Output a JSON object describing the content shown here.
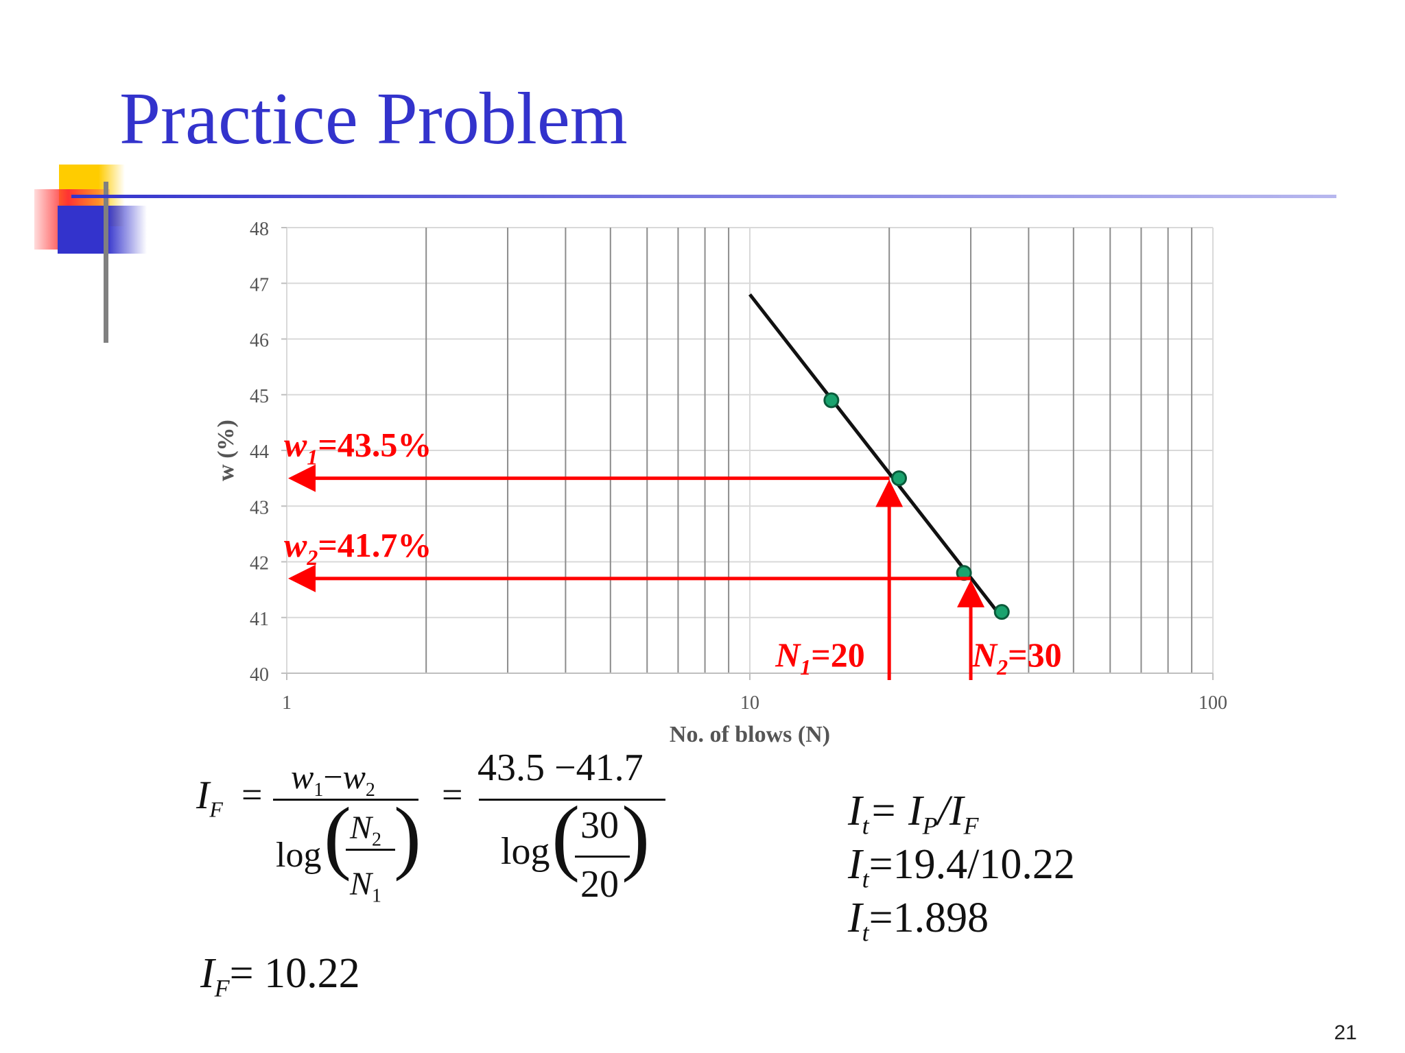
{
  "slide": {
    "title": "Practice Problem",
    "page_number": "21"
  },
  "chart_data": {
    "type": "scatter",
    "x_scale": "log",
    "xlabel": "No. of blows (N)",
    "ylabel": "w (%)",
    "xlim": [
      1,
      100
    ],
    "ylim": [
      40,
      48
    ],
    "x_ticks": [
      "1",
      "10",
      "100"
    ],
    "y_ticks": [
      "40",
      "41",
      "42",
      "43",
      "44",
      "45",
      "46",
      "47",
      "48"
    ],
    "grid": true,
    "points": [
      {
        "x": 15,
        "y": 44.9
      },
      {
        "x": 21,
        "y": 43.5
      },
      {
        "x": 29,
        "y": 41.8
      },
      {
        "x": 35,
        "y": 41.1
      }
    ],
    "trendline": {
      "from": {
        "x": 10,
        "y": 46.8
      },
      "to": {
        "x": 35,
        "y": 41.0
      }
    },
    "annotations": [
      {
        "label": "w1=43.5%",
        "text_main": "w",
        "text_sub": "1",
        "text_rest": "=43.5%",
        "y": 43.5,
        "from_x": 20
      },
      {
        "label": "w2=41.7%",
        "text_main": "w",
        "text_sub": "2",
        "text_rest": "=41.7%",
        "y": 41.7,
        "from_x": 30
      },
      {
        "label": "N1=20",
        "text_main": "N",
        "text_sub": "1",
        "text_rest": "=20",
        "x": 20,
        "to_y": 43.5
      },
      {
        "label": "N2=30",
        "text_main": "N",
        "text_sub": "2",
        "text_rest": "=30",
        "x": 30,
        "to_y": 41.7
      }
    ],
    "colors": {
      "points": "#1aa36e",
      "line": "#111111",
      "annotation": "#ff0000",
      "grid": "#d9d9d9",
      "minor_grid": "#8c8c8c"
    }
  },
  "equations": {
    "if_symbol": "I",
    "if_sub": "F",
    "eq_sign": "=",
    "num_w1": "w",
    "num_w1_sub": "1",
    "minus": "−",
    "num_w2": "w",
    "num_w2_sub": "2",
    "log": "log",
    "frac_n2": "N",
    "frac_n2_sub": "2",
    "frac_n1": "N",
    "frac_n1_sub": "1",
    "num_values": "43.5 −41.7",
    "frac_30": "30",
    "frac_20": "20",
    "result_if": "10.22",
    "it_line1_rest": "= I",
    "it_line1_p": "P",
    "it_line1_slash": "/I",
    "it_line1_f": "F",
    "it_line2_rest": "=19.4/10.22",
    "it_line3_rest": "=1.898",
    "it_symbol": "I",
    "it_sub": "t"
  },
  "decoration_colors": {
    "yellow": "#ffcc00",
    "red": "#ff3333",
    "blue": "#3333cc",
    "gray": "#808080"
  }
}
